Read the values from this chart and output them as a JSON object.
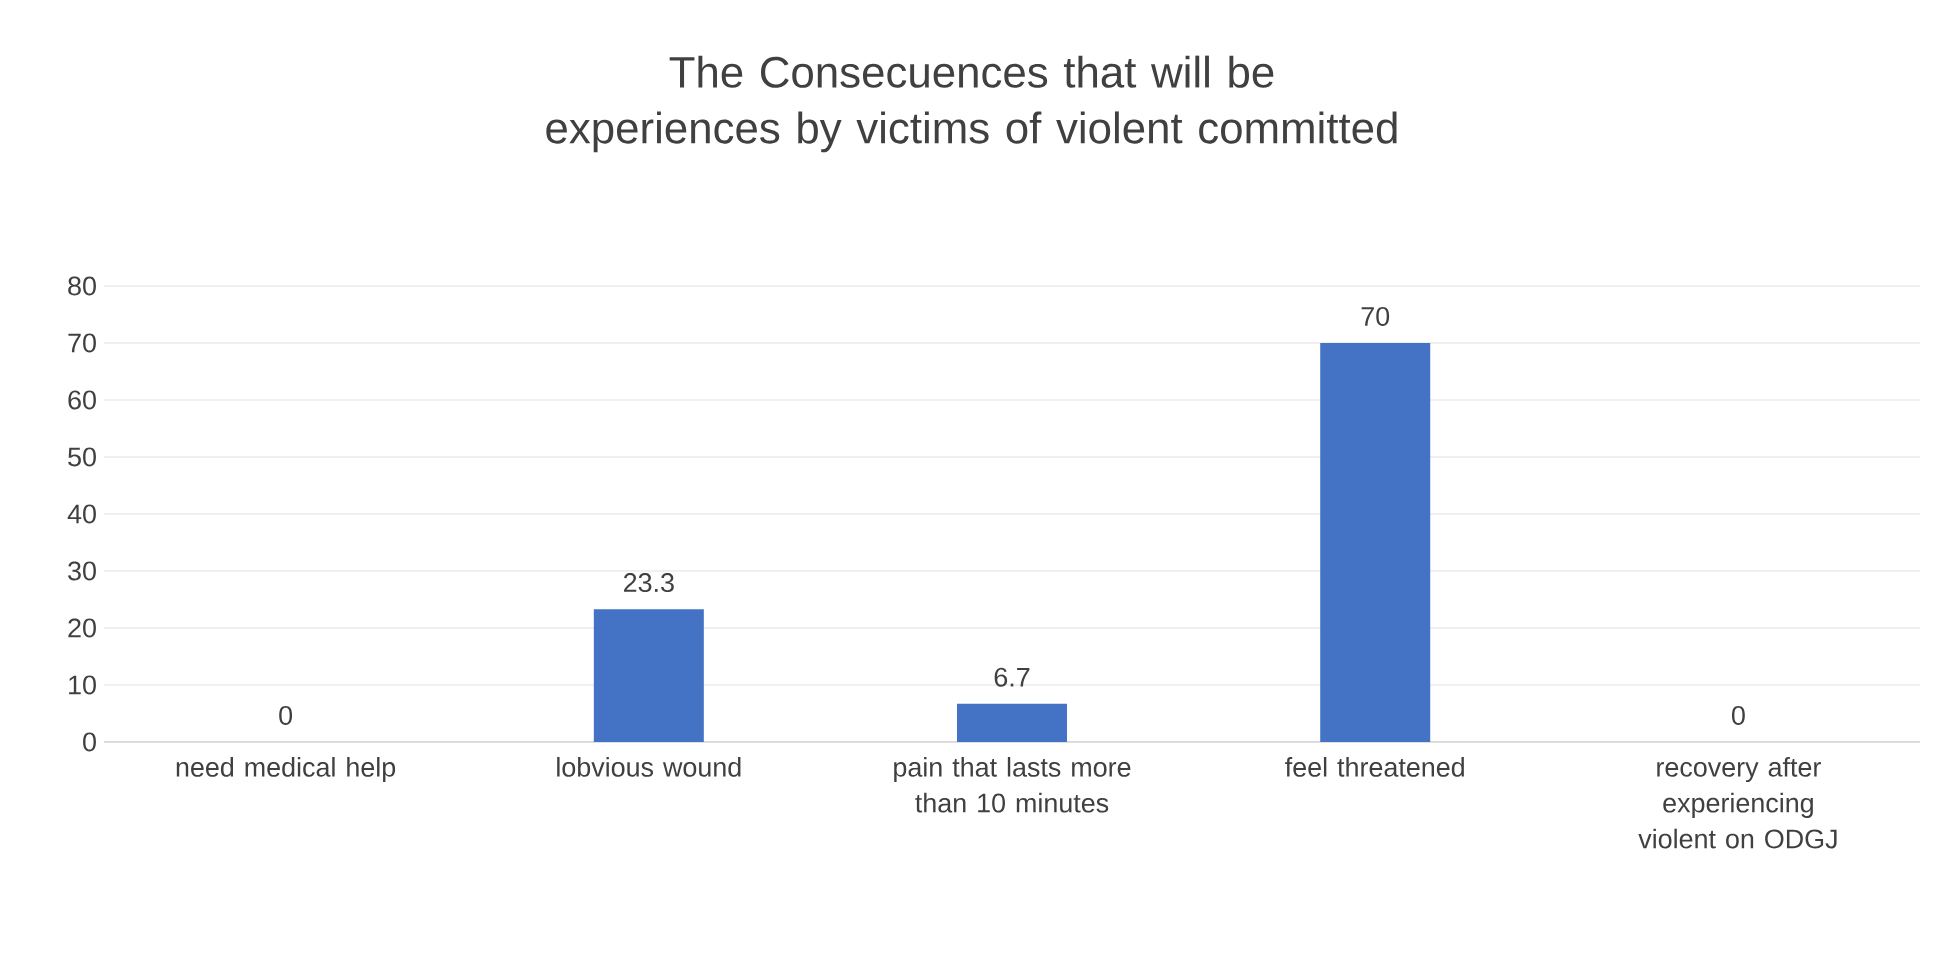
{
  "chart_data": {
    "type": "bar",
    "title": "The Consecuences that will be experiences by victims of violent committed",
    "categories": [
      "need medical help",
      "lobvious wound",
      "pain that lasts more than 10 minutes",
      "feel threatened",
      "recovery after experiencing violent on ODGJ"
    ],
    "values": [
      0,
      23.3,
      6.7,
      70,
      0
    ],
    "color": "#4472c4",
    "ylim": [
      0,
      80
    ],
    "yticks": [
      0,
      10,
      20,
      30,
      40,
      50,
      60,
      70,
      80
    ],
    "grid": "y",
    "data_labels": true
  }
}
